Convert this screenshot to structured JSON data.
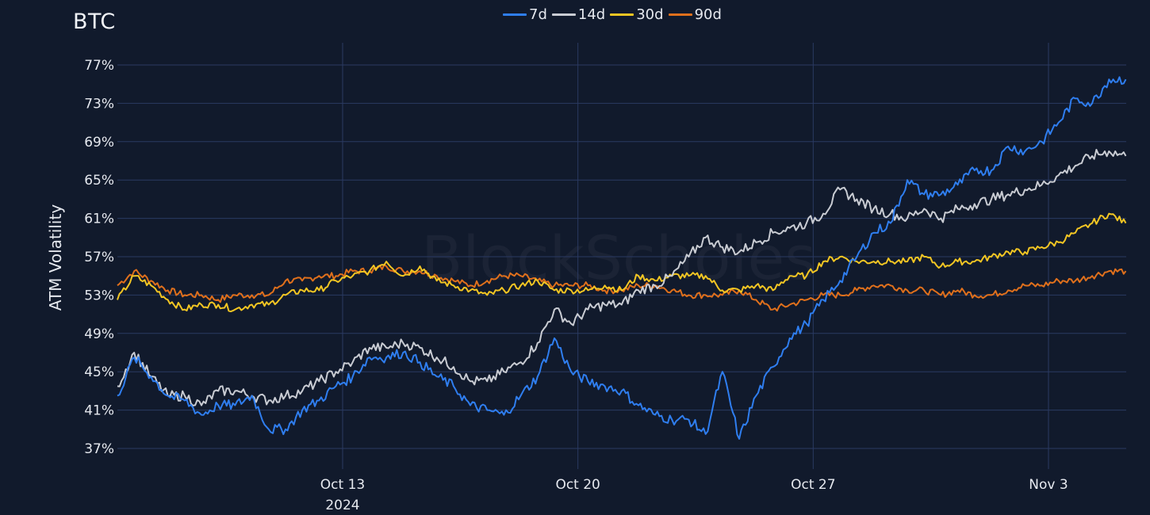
{
  "header": {
    "title": "BTC"
  },
  "legend": [
    {
      "label": "7d",
      "color": "#2f7ef0"
    },
    {
      "label": "14d",
      "color": "#c9ccd3"
    },
    {
      "label": "30d",
      "color": "#f3c623"
    },
    {
      "label": "90d",
      "color": "#e0701c"
    }
  ],
  "watermark": "BlockScholes",
  "colors": {
    "background": "#111a2c",
    "grid": "#2a3a62",
    "text": "#e6e9ef"
  },
  "chart_data": {
    "type": "line",
    "title": "BTC",
    "xlabel": "",
    "ylabel": "ATM Volatility",
    "ylim": [
      35.6,
      78.4
    ],
    "yticks": [
      "37%",
      "41%",
      "45%",
      "49%",
      "53%",
      "57%",
      "61%",
      "65%",
      "69%",
      "73%",
      "77%"
    ],
    "ytick_values": [
      37,
      41,
      45,
      49,
      53,
      57,
      61,
      65,
      69,
      73,
      77
    ],
    "xticks": [
      {
        "label": "Oct 13",
        "sublabel": "2024",
        "day": 7
      },
      {
        "label": "Oct 20",
        "sublabel": "",
        "day": 14
      },
      {
        "label": "Oct 27",
        "sublabel": "",
        "day": 21
      },
      {
        "label": "Nov 3",
        "sublabel": "",
        "day": 28
      }
    ],
    "x_unit": "days since Oct 6 2024 00:00",
    "xlim": [
      0.3,
      30.3
    ],
    "grid": true,
    "legend_position": "top-center",
    "x": [
      0.3,
      0.8,
      1.3,
      1.8,
      2.3,
      2.8,
      3.3,
      3.8,
      4.3,
      4.8,
      5.3,
      5.8,
      6.3,
      6.8,
      7.3,
      7.8,
      8.3,
      8.8,
      9.3,
      9.8,
      10.3,
      10.8,
      11.3,
      11.8,
      12.3,
      12.8,
      13.3,
      13.8,
      14.3,
      14.8,
      15.3,
      15.8,
      16.3,
      16.8,
      17.3,
      17.8,
      18.3,
      18.8,
      19.3,
      19.8,
      20.3,
      20.8,
      21.3,
      21.8,
      22.3,
      22.8,
      23.3,
      23.8,
      24.3,
      24.8,
      25.3,
      25.8,
      26.3,
      26.8,
      27.3,
      27.8,
      28.3,
      28.8,
      29.3,
      29.8,
      30.3
    ],
    "series": [
      {
        "name": "7d",
        "color": "#2f7ef0",
        "values": [
          42.5,
          46.5,
          44.5,
          42.5,
          42.0,
          40.5,
          41.5,
          41.5,
          42.5,
          39.0,
          39.0,
          41.0,
          42.0,
          43.5,
          44.5,
          46.5,
          46.5,
          47.0,
          46.0,
          44.5,
          43.5,
          41.5,
          41.0,
          40.5,
          42.5,
          44.5,
          48.5,
          45.0,
          44.0,
          43.5,
          43.0,
          41.5,
          40.5,
          40.0,
          40.0,
          38.5,
          45.0,
          38.0,
          42.5,
          45.5,
          48.5,
          50.0,
          52.5,
          54.5,
          57.0,
          59.5,
          60.5,
          65.0,
          63.5,
          63.5,
          64.5,
          66.0,
          66.0,
          68.5,
          68.0,
          69.0,
          71.0,
          73.5,
          73.0,
          75.5,
          75.5
        ]
      },
      {
        "name": "14d",
        "color": "#c9ccd3",
        "values": [
          43.5,
          47.0,
          44.5,
          42.5,
          42.5,
          41.5,
          43.0,
          43.0,
          42.5,
          42.0,
          42.5,
          43.0,
          44.0,
          45.0,
          46.0,
          47.5,
          47.5,
          48.0,
          47.5,
          46.5,
          45.5,
          44.0,
          44.0,
          45.0,
          46.0,
          48.0,
          51.5,
          50.0,
          51.5,
          52.0,
          52.0,
          53.5,
          54.0,
          55.0,
          57.0,
          59.0,
          58.0,
          57.5,
          58.5,
          59.5,
          60.0,
          60.5,
          61.5,
          64.0,
          63.0,
          62.0,
          61.5,
          61.0,
          62.0,
          61.0,
          62.0,
          62.5,
          63.0,
          63.5,
          64.0,
          64.5,
          65.5,
          66.5,
          67.5,
          68.0,
          67.5
        ]
      },
      {
        "name": "30d",
        "color": "#f3c623",
        "values": [
          52.5,
          55.0,
          54.0,
          52.5,
          51.5,
          52.0,
          52.0,
          51.5,
          52.0,
          52.0,
          53.0,
          53.5,
          53.5,
          54.5,
          55.0,
          55.5,
          56.5,
          55.0,
          56.0,
          54.5,
          54.0,
          53.5,
          53.0,
          53.5,
          54.0,
          54.5,
          53.5,
          53.5,
          53.5,
          54.0,
          53.5,
          55.0,
          54.5,
          55.0,
          55.0,
          55.0,
          53.5,
          53.5,
          54.0,
          53.5,
          55.0,
          55.0,
          56.5,
          57.0,
          56.5,
          56.5,
          56.5,
          56.5,
          57.0,
          56.0,
          56.5,
          56.5,
          57.0,
          57.5,
          57.5,
          58.0,
          58.5,
          59.5,
          60.5,
          61.5,
          60.5
        ]
      },
      {
        "name": "90d",
        "color": "#e0701c",
        "values": [
          54.0,
          55.5,
          54.5,
          53.5,
          53.0,
          53.0,
          52.5,
          53.0,
          53.0,
          53.0,
          54.5,
          54.5,
          55.0,
          55.0,
          55.5,
          55.5,
          56.0,
          55.5,
          55.5,
          55.0,
          54.5,
          54.0,
          54.5,
          55.0,
          55.0,
          54.5,
          54.0,
          54.0,
          54.0,
          53.5,
          53.5,
          54.0,
          54.0,
          53.5,
          53.0,
          53.0,
          53.0,
          53.5,
          52.5,
          51.5,
          52.0,
          52.5,
          53.0,
          53.0,
          53.5,
          54.0,
          54.0,
          53.5,
          53.5,
          53.0,
          53.5,
          53.0,
          53.0,
          53.5,
          54.0,
          54.0,
          54.5,
          54.5,
          55.0,
          55.5,
          55.5
        ]
      }
    ]
  }
}
